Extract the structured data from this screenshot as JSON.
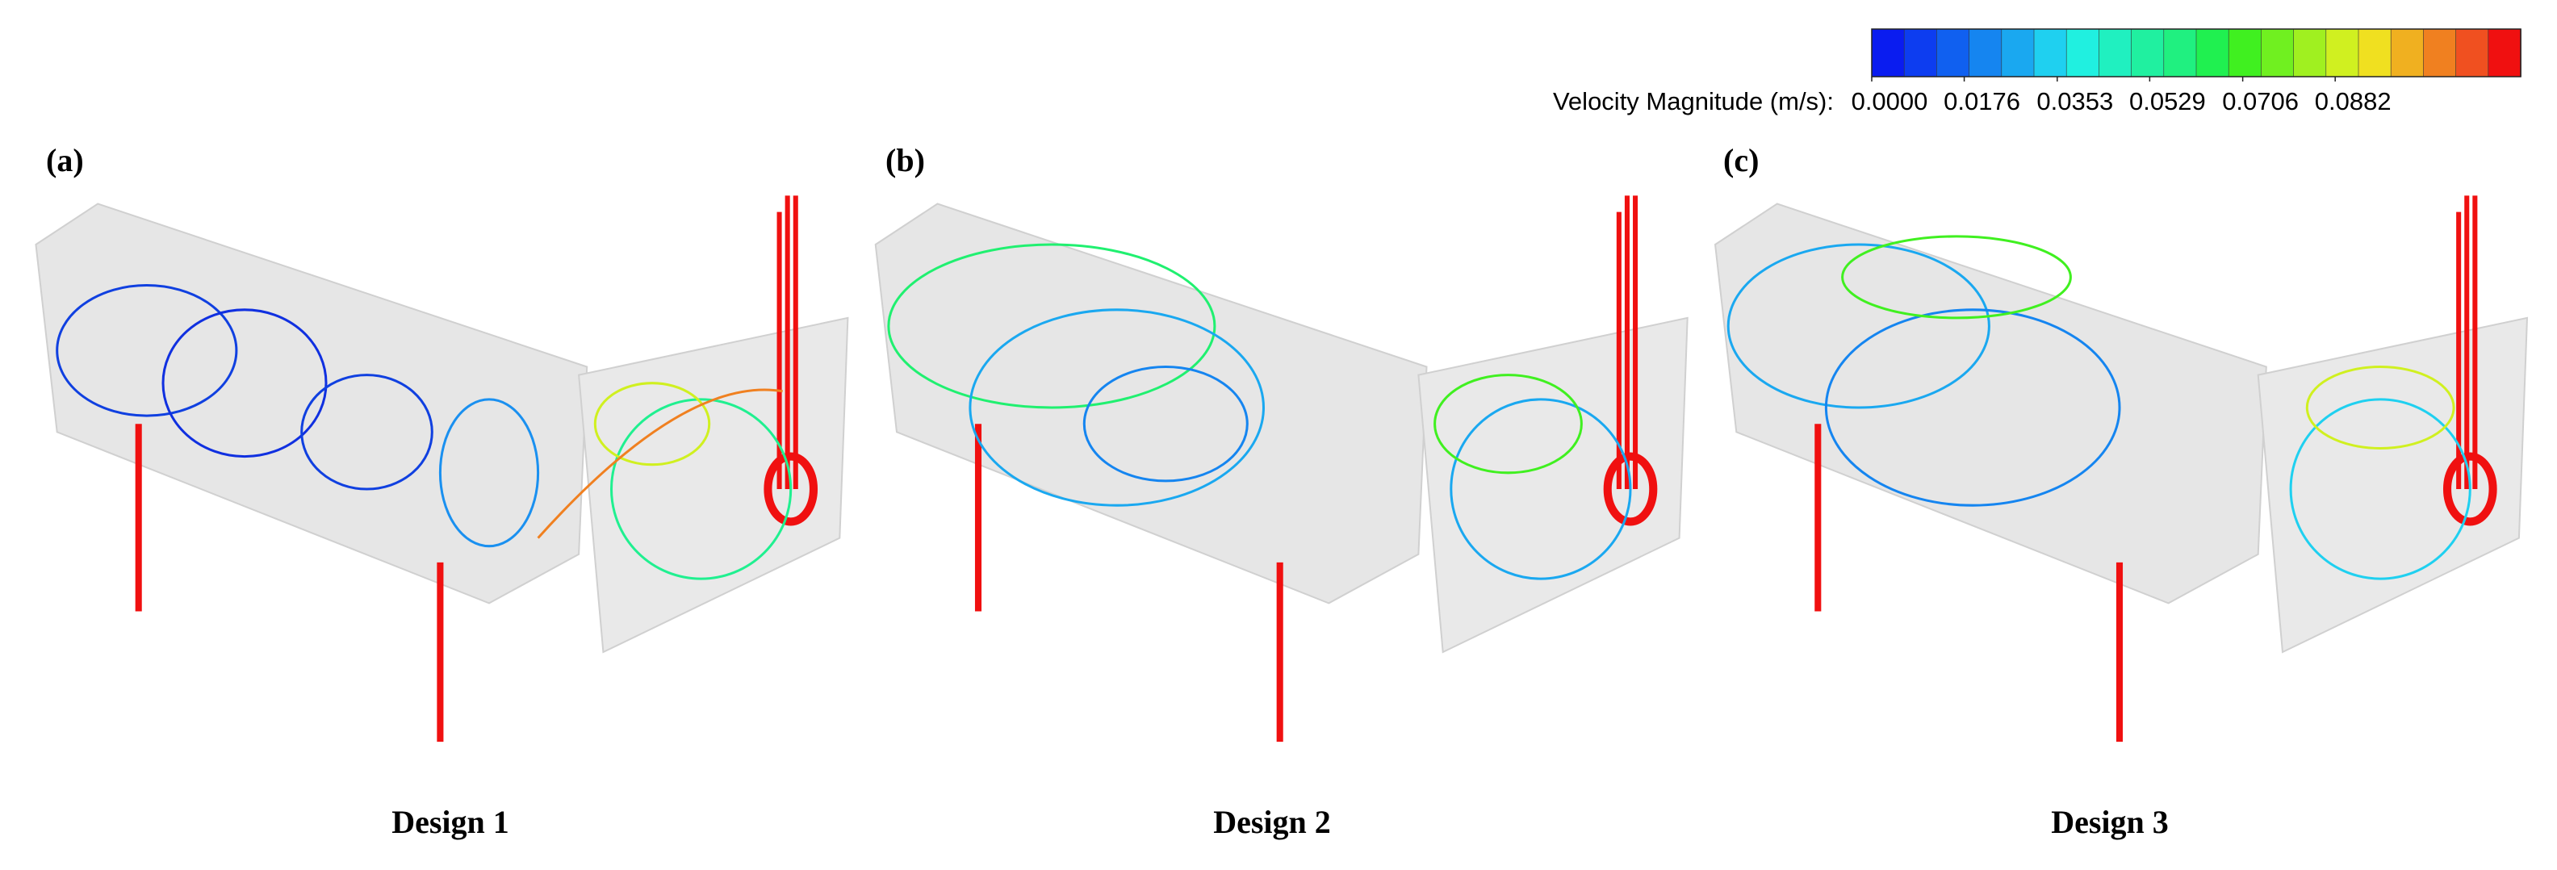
{
  "colorbar": {
    "label": "Velocity Magnitude (m/s):",
    "range": [
      0,
      0.1235
    ],
    "ticks": [
      {
        "value": 0,
        "label": "0.0000"
      },
      {
        "value": 0.0176,
        "label": "0.0176"
      },
      {
        "value": 0.0353,
        "label": "0.0353"
      },
      {
        "value": 0.0529,
        "label": "0.0529"
      },
      {
        "value": 0.0706,
        "label": "0.0706"
      },
      {
        "value": 0.0882,
        "label": "0.0882"
      }
    ],
    "colors": [
      "#0a1cf0",
      "#0d3df0",
      "#1060f0",
      "#1585f0",
      "#1aa8f0",
      "#1fd0f0",
      "#20f0e0",
      "#20f0c0",
      "#20f0a0",
      "#20f080",
      "#20f050",
      "#40f020",
      "#70f020",
      "#a0f020",
      "#d0f020",
      "#f0e020",
      "#f0b020",
      "#f08020",
      "#f05020",
      "#f01010"
    ]
  },
  "panels": [
    {
      "label": "(a)",
      "caption": "Design 1"
    },
    {
      "label": "(b)",
      "caption": "Design 2"
    },
    {
      "label": "(c)",
      "caption": "Design 3"
    }
  ]
}
